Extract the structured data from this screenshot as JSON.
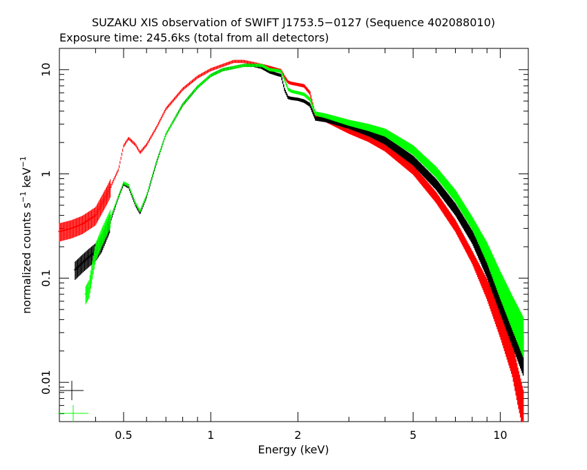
{
  "chart_data": {
    "type": "scatter",
    "title": "SUZAKU XIS observation of SWIFT J1753.5−0127 (Sequence 402088010)",
    "subtitle": "Exposure time: 245.6ks (total from all detectors)",
    "xlabel": "Energy (keV)",
    "ylabel_parts": {
      "main": "normalized counts s",
      "sup1": "−1",
      "mid": " keV",
      "sup2": "−1"
    },
    "xscale": "log",
    "yscale": "log",
    "xlim": [
      0.3,
      12.5
    ],
    "ylim": [
      0.0042,
      16
    ],
    "xticks": [
      {
        "value": 0.5,
        "label": "0.5"
      },
      {
        "value": 1,
        "label": "1"
      },
      {
        "value": 2,
        "label": "2"
      },
      {
        "value": 5,
        "label": "5"
      },
      {
        "value": 10,
        "label": "10"
      }
    ],
    "yticks": [
      {
        "value": 0.01,
        "label": "0.01"
      },
      {
        "value": 0.1,
        "label": "0.1"
      },
      {
        "value": 1,
        "label": "1"
      },
      {
        "value": 10,
        "label": "10"
      }
    ],
    "grid": false,
    "series": [
      {
        "color": "#ff0000",
        "x": [
          0.3,
          0.33,
          0.36,
          0.4,
          0.44,
          0.48,
          0.5,
          0.52,
          0.55,
          0.57,
          0.6,
          0.65,
          0.7,
          0.8,
          0.9,
          1.0,
          1.1,
          1.2,
          1.3,
          1.4,
          1.5,
          1.6,
          1.7,
          1.75,
          1.8,
          1.85,
          1.9,
          2.0,
          2.1,
          2.2,
          2.3,
          2.5,
          3.0,
          3.5,
          4.0,
          5.0,
          6.0,
          7.0,
          8.0,
          9.0,
          10.0,
          11.0,
          11.5,
          12.0
        ],
        "y": [
          0.28,
          0.3,
          0.33,
          0.4,
          0.65,
          1.1,
          1.85,
          2.2,
          1.9,
          1.6,
          1.9,
          2.8,
          4.2,
          6.5,
          8.5,
          10.0,
          11.0,
          12.0,
          12.0,
          11.5,
          11.0,
          10.5,
          10.0,
          9.8,
          8.5,
          7.6,
          7.4,
          7.2,
          7.0,
          6.0,
          3.6,
          3.3,
          2.6,
          2.2,
          1.8,
          1.1,
          0.6,
          0.32,
          0.16,
          0.08,
          0.038,
          0.018,
          0.01,
          0.006
        ]
      },
      {
        "color": "#000000",
        "x": [
          0.34,
          0.36,
          0.38,
          0.4,
          0.42,
          0.45,
          0.48,
          0.5,
          0.52,
          0.55,
          0.57,
          0.6,
          0.65,
          0.7,
          0.8,
          0.9,
          1.0,
          1.1,
          1.2,
          1.3,
          1.4,
          1.5,
          1.6,
          1.7,
          1.75,
          1.8,
          1.85,
          1.9,
          2.0,
          2.1,
          2.2,
          2.3,
          2.5,
          3.0,
          3.5,
          4.0,
          5.0,
          6.0,
          7.0,
          8.0,
          9.0,
          10.0,
          11.0,
          12.0
        ],
        "y": [
          0.12,
          0.14,
          0.16,
          0.18,
          0.22,
          0.35,
          0.6,
          0.8,
          0.75,
          0.5,
          0.42,
          0.6,
          1.3,
          2.4,
          4.6,
          6.8,
          8.8,
          10.0,
          10.5,
          11.0,
          11.0,
          10.5,
          9.5,
          9.0,
          8.8,
          6.4,
          5.4,
          5.3,
          5.2,
          5.0,
          4.6,
          3.4,
          3.3,
          2.9,
          2.5,
          2.1,
          1.35,
          0.8,
          0.46,
          0.25,
          0.13,
          0.065,
          0.035,
          0.02
        ]
      },
      {
        "color": "#00ff00",
        "x": [
          0.37,
          0.38,
          0.4,
          0.42,
          0.45,
          0.48,
          0.5,
          0.52,
          0.55,
          0.57,
          0.6,
          0.65,
          0.7,
          0.8,
          0.9,
          1.0,
          1.1,
          1.2,
          1.3,
          1.4,
          1.5,
          1.6,
          1.7,
          1.75,
          1.8,
          1.85,
          1.9,
          2.0,
          2.1,
          2.2,
          2.3,
          2.5,
          3.0,
          3.5,
          4.0,
          5.0,
          6.0,
          7.0,
          8.0,
          9.0,
          10.0,
          11.0,
          12.0
        ],
        "y": [
          0.07,
          0.08,
          0.18,
          0.25,
          0.38,
          0.6,
          0.82,
          0.78,
          0.52,
          0.44,
          0.62,
          1.3,
          2.4,
          4.6,
          6.8,
          8.8,
          10.0,
          10.5,
          11.0,
          11.0,
          11.0,
          10.0,
          9.8,
          9.6,
          8.0,
          6.5,
          6.2,
          6.0,
          5.8,
          5.2,
          3.8,
          3.6,
          3.1,
          2.8,
          2.5,
          1.7,
          1.05,
          0.62,
          0.34,
          0.18,
          0.09,
          0.05,
          0.03
        ]
      }
    ],
    "legend_markers": [
      {
        "color": "#000000"
      },
      {
        "color": "#00ff00"
      }
    ]
  }
}
